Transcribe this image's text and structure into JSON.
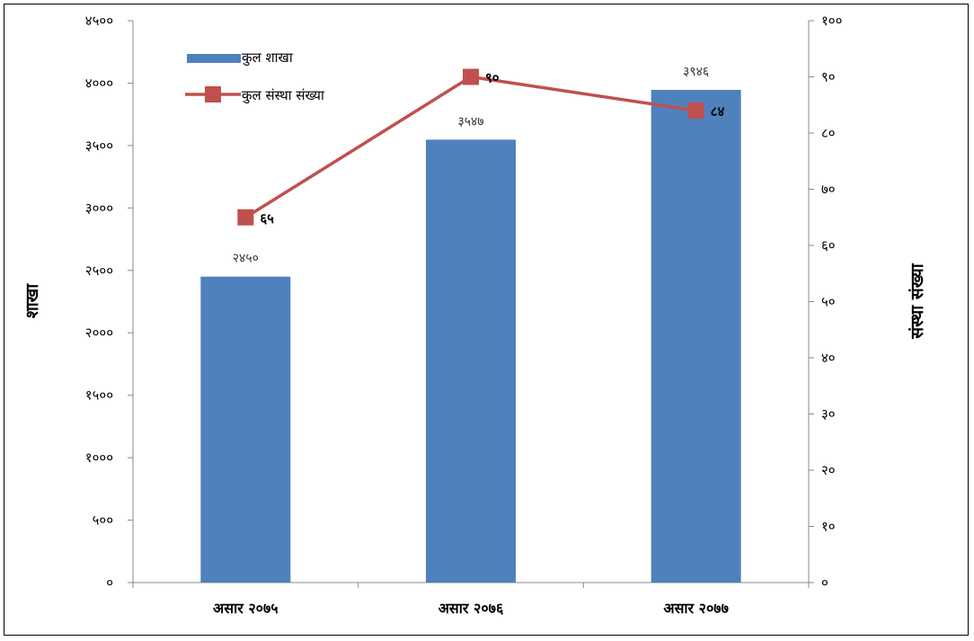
{
  "chart_data": {
    "type": "bar",
    "categories": [
      "असार २०७५",
      "असार २०७६",
      "असार २०७७"
    ],
    "series": [
      {
        "name": "कुल शाखा",
        "type": "bar",
        "axis": "left",
        "values": [
          2450,
          3547,
          3946
        ],
        "labels": [
          "२४५०",
          "३५४७",
          "३९४६"
        ],
        "color": "#4F81BD"
      },
      {
        "name": "कुल संस्था संख्या",
        "type": "line",
        "axis": "right",
        "values": [
          65,
          90,
          84
        ],
        "labels": [
          "६५",
          "९०",
          "८४"
        ],
        "color": "#C0504D"
      }
    ],
    "y_left": {
      "label": "शाखा",
      "min": 0,
      "max": 4500,
      "ticks": [
        0,
        500,
        1000,
        1500,
        2000,
        2500,
        3000,
        3500,
        4000,
        4500
      ],
      "tick_labels": [
        "०",
        "५००",
        "१०००",
        "१५००",
        "२०००",
        "२५००",
        "३०००",
        "३५००",
        "४०००",
        "४५००"
      ]
    },
    "y_right": {
      "label": "संस्था संख्या",
      "min": 0,
      "max": 100,
      "ticks": [
        0,
        10,
        20,
        30,
        40,
        50,
        60,
        70,
        80,
        90,
        100
      ],
      "tick_labels": [
        "०",
        "१०",
        "२०",
        "३०",
        "४०",
        "५०",
        "६०",
        "७०",
        "८०",
        "९०",
        "१००"
      ]
    },
    "grid": false,
    "legend_position": "top-left"
  }
}
